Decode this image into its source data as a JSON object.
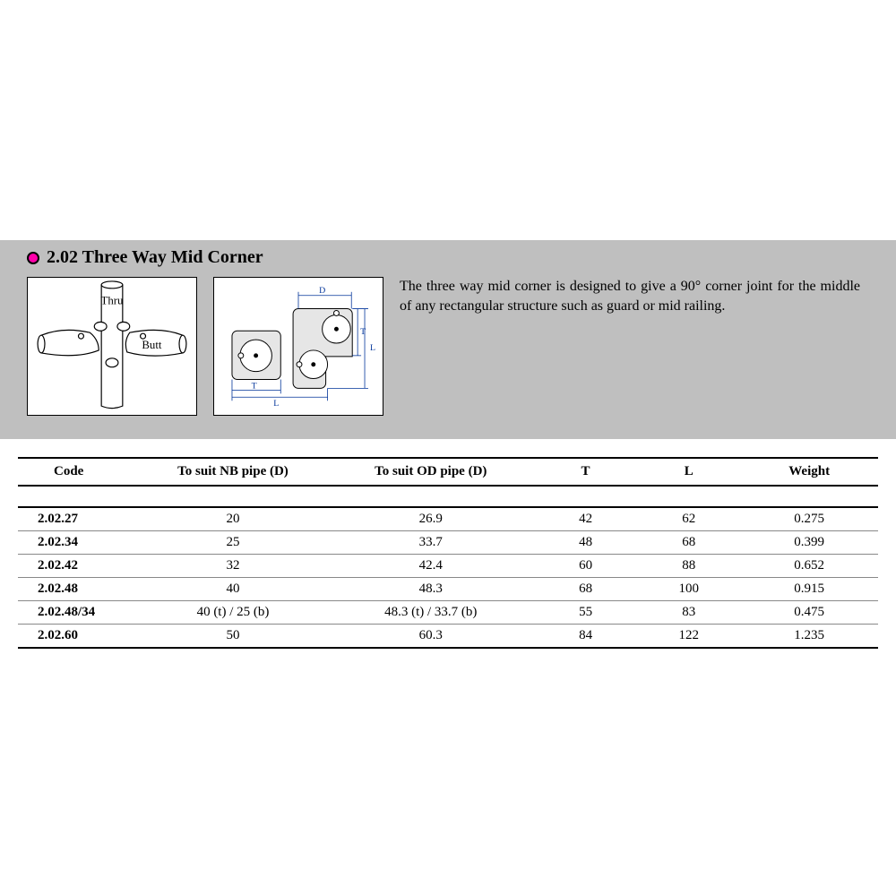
{
  "section": {
    "number": "2.02",
    "title": "Three Way Mid Corner",
    "full_title": "2.02  Three Way Mid Corner",
    "bullet_color": "#ff00aa",
    "description": "The three way mid corner is designed to give a 90° corner joint for the middle of any rectangular structure such as guard or mid railing."
  },
  "figure1": {
    "label_thru": "Thru",
    "label_butt": "Butt"
  },
  "figure2": {
    "dim_D": "D",
    "dim_T": "T",
    "dim_L": "L"
  },
  "table": {
    "columns": [
      "Code",
      "To suit NB pipe (D)",
      "To suit OD pipe (D)",
      "T",
      "L",
      "Weight"
    ],
    "col_widths_pct": [
      14,
      22,
      24,
      12,
      12,
      16
    ],
    "rows": [
      [
        "2.02.27",
        "20",
        "26.9",
        "42",
        "62",
        "0.275"
      ],
      [
        "2.02.34",
        "25",
        "33.7",
        "48",
        "68",
        "0.399"
      ],
      [
        "2.02.42",
        "32",
        "42.4",
        "60",
        "88",
        "0.652"
      ],
      [
        "2.02.48",
        "40",
        "48.3",
        "68",
        "100",
        "0.915"
      ],
      [
        "2.02.48/34",
        "40 (t) / 25 (b)",
        "48.3 (t) / 33.7 (b)",
        "55",
        "83",
        "0.475"
      ],
      [
        "2.02.60",
        "50",
        "60.3",
        "84",
        "122",
        "1.235"
      ]
    ]
  },
  "colors": {
    "band_bg": "#bfbfbf",
    "page_bg": "#ffffff",
    "rule": "#000000",
    "row_rule": "#888888"
  }
}
